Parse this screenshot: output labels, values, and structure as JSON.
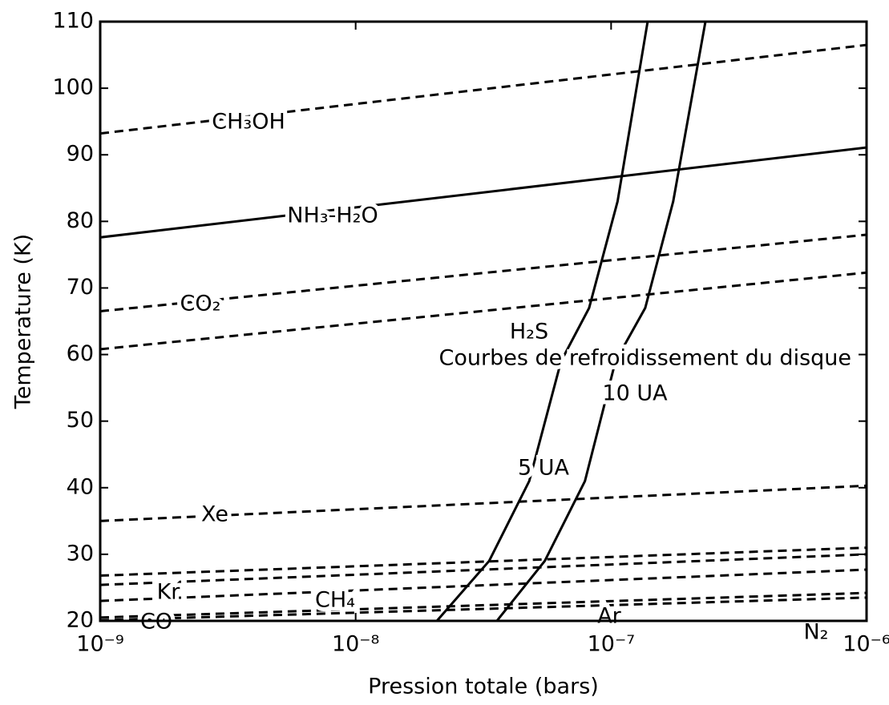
{
  "chart_data": {
    "type": "line",
    "xlabel": "Pression totale (bars)",
    "ylabel": "Temperature (K)",
    "annotations": [
      "Courbes de refroidissement du disque"
    ],
    "xscale": "log",
    "xlim": [
      1e-09,
      1e-06
    ],
    "xticks": [
      {
        "value": 1e-09,
        "label": "10⁻⁹"
      },
      {
        "value": 1e-08,
        "label": "10⁻⁸"
      },
      {
        "value": 1e-07,
        "label": "10⁻⁷"
      },
      {
        "value": 1e-06,
        "label": "10⁻⁶"
      }
    ],
    "ylim": [
      20,
      110
    ],
    "yticks": [
      20,
      30,
      40,
      50,
      60,
      70,
      80,
      90,
      100,
      110
    ],
    "grid": false,
    "series": [
      {
        "name": "CH₃OH",
        "color": "#000000",
        "style": "dashed",
        "x": [
          1e-09,
          1e-06
        ],
        "values": [
          93.2,
          106.5
        ]
      },
      {
        "name": "NH₃-H₂O",
        "color": "#000000",
        "style": "solid",
        "x": [
          1e-09,
          1e-06
        ],
        "values": [
          77.6,
          91.1
        ]
      },
      {
        "name": "CO₂",
        "color": "#000000",
        "style": "dashed",
        "x": [
          1e-09,
          1e-06
        ],
        "values": [
          66.5,
          78
        ]
      },
      {
        "name": "H₂S",
        "color": "#000000",
        "style": "dashed",
        "x": [
          1e-09,
          1e-06
        ],
        "values": [
          60.8,
          72.3
        ]
      },
      {
        "name": "Xe",
        "color": "#000000",
        "style": "dashed",
        "x": [
          1e-09,
          1e-06
        ],
        "values": [
          35,
          40.3
        ]
      },
      {
        "name": "Kr",
        "color": "#000000",
        "style": "dashed",
        "x": [
          1e-09,
          1e-06
        ],
        "values": [
          26.8,
          31
        ]
      },
      {
        "name": "CH₄",
        "color": "#000000",
        "style": "dashed",
        "x": [
          1e-09,
          1e-06
        ],
        "values": [
          25.4,
          30
        ]
      },
      {
        "name": "CO",
        "color": "#000000",
        "style": "dashed",
        "x": [
          1e-09,
          1e-06
        ],
        "values": [
          23,
          27.7
        ]
      },
      {
        "name": "Ar",
        "color": "#000000",
        "style": "dashed",
        "x": [
          1e-09,
          1e-06
        ],
        "values": [
          20.5,
          24.2
        ]
      },
      {
        "name": "N₂",
        "color": "#000000",
        "style": "dashed",
        "x": [
          1e-09,
          1e-06
        ],
        "values": [
          20.1,
          23.5
        ]
      },
      {
        "name": "5 UA",
        "color": "#000000",
        "style": "solid",
        "x": [
          2.08e-08,
          3.33e-08,
          4.78e-08,
          6.37e-08,
          8.2e-08,
          1.06e-07,
          1.39e-07
        ],
        "values": [
          20,
          29,
          41,
          59,
          67,
          83,
          110
        ]
      },
      {
        "name": "10 UA",
        "color": "#000000",
        "style": "solid",
        "x": [
          3.57e-08,
          5.5e-08,
          7.9e-08,
          1.04e-07,
          1.36e-07,
          1.75e-07,
          2.34e-07
        ],
        "values": [
          20,
          29,
          41,
          59,
          67,
          83,
          110
        ]
      }
    ]
  }
}
